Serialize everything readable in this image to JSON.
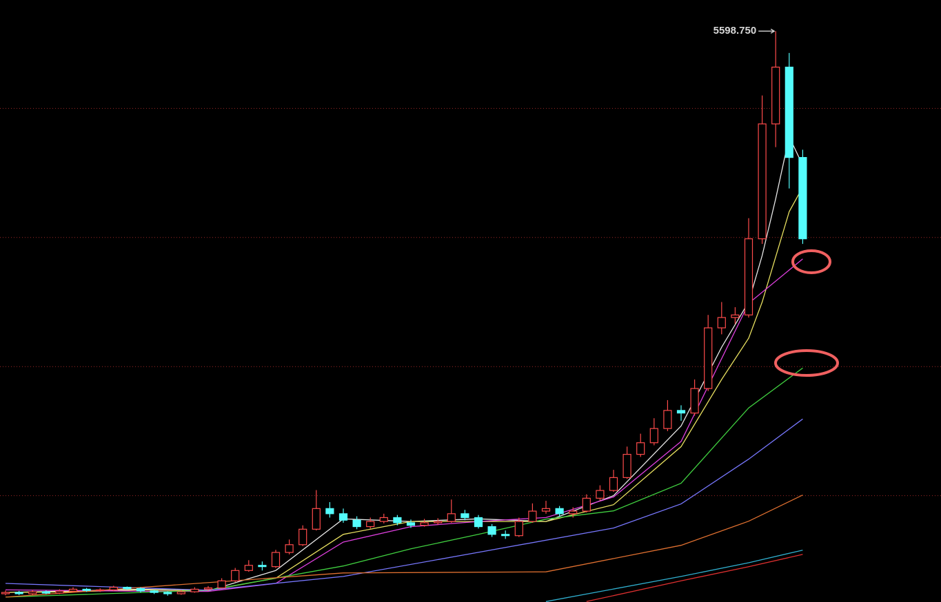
{
  "chart_data": {
    "type": "candlestick",
    "up_color": "#ff4b4b",
    "down_color": "#54fcfc",
    "grid_color": "#a02828",
    "ylim": [
      1176,
      5840
    ],
    "gridlines": [
      2000,
      3000,
      4000,
      5000
    ],
    "open": [
      1240,
      1250,
      1240,
      1255,
      1245,
      1260,
      1275,
      1265,
      1270,
      1290,
      1280,
      1262,
      1250,
      1240,
      1255,
      1275,
      1285,
      1340,
      1420,
      1460,
      1450,
      1560,
      1620,
      1740,
      1900,
      1860,
      1810,
      1760,
      1800,
      1830,
      1790,
      1770,
      1790,
      1800,
      1860,
      1830,
      1760,
      1700,
      1690,
      1800,
      1880,
      1900,
      1860,
      1880,
      1980,
      2040,
      2140,
      2320,
      2410,
      2520,
      2660,
      2640,
      2830,
      3300,
      3380,
      3400,
      3990,
      4880,
      5320,
      4620
    ],
    "high": [
      1265,
      1262,
      1270,
      1266,
      1275,
      1290,
      1285,
      1282,
      1302,
      1296,
      1290,
      1270,
      1258,
      1268,
      1290,
      1300,
      1360,
      1440,
      1500,
      1490,
      1580,
      1660,
      1770,
      2043,
      1950,
      1900,
      1840,
      1830,
      1860,
      1850,
      1815,
      1820,
      1825,
      1970,
      1890,
      1850,
      1780,
      1730,
      1830,
      1940,
      1960,
      1920,
      1910,
      2010,
      2080,
      2200,
      2380,
      2480,
      2600,
      2740,
      2700,
      2900,
      3400,
      3500,
      3460,
      4150,
      5100,
      5598.75,
      5430,
      4680
    ],
    "low": [
      1228,
      1230,
      1232,
      1236,
      1238,
      1252,
      1255,
      1254,
      1262,
      1270,
      1250,
      1238,
      1225,
      1232,
      1248,
      1265,
      1280,
      1330,
      1410,
      1420,
      1440,
      1545,
      1610,
      1730,
      1830,
      1790,
      1740,
      1745,
      1785,
      1770,
      1750,
      1760,
      1775,
      1790,
      1810,
      1745,
      1680,
      1665,
      1680,
      1790,
      1860,
      1840,
      1830,
      1870,
      1960,
      2030,
      2130,
      2300,
      2390,
      2500,
      2580,
      2620,
      2810,
      3250,
      3330,
      3380,
      3950,
      4700,
      4380,
      3950
    ],
    "close": [
      1250,
      1240,
      1255,
      1245,
      1260,
      1275,
      1265,
      1270,
      1290,
      1280,
      1262,
      1250,
      1240,
      1255,
      1275,
      1285,
      1340,
      1420,
      1460,
      1450,
      1560,
      1620,
      1740,
      1900,
      1860,
      1810,
      1760,
      1800,
      1830,
      1790,
      1770,
      1790,
      1800,
      1860,
      1830,
      1760,
      1700,
      1690,
      1800,
      1880,
      1900,
      1860,
      1880,
      1980,
      2040,
      2140,
      2320,
      2410,
      2520,
      2660,
      2640,
      2830,
      3300,
      3380,
      3400,
      3990,
      4880,
      5320,
      4620,
      3990
    ],
    "annotations": [
      {
        "label": "5598.750",
        "value": 5598.75
      }
    ],
    "lines": [
      {
        "color": "#e8e8e8",
        "x": [
          0,
          5,
          10,
          15,
          20,
          25,
          30,
          35,
          40,
          45,
          50,
          53,
          55,
          56,
          57,
          58,
          59
        ],
        "values": [
          1250,
          1262,
          1275,
          1262,
          1420,
          1820,
          1800,
          1820,
          1800,
          2000,
          2540,
          3150,
          3500,
          3860,
          4300,
          4780,
          4560
        ]
      },
      {
        "color": "#e8e060",
        "x": [
          0,
          5,
          10,
          15,
          20,
          25,
          30,
          35,
          40,
          45,
          50,
          53,
          55,
          56,
          57,
          58,
          59
        ],
        "values": [
          1250,
          1255,
          1270,
          1265,
          1360,
          1700,
          1800,
          1800,
          1800,
          1930,
          2380,
          2900,
          3220,
          3500,
          3850,
          4200,
          4390
        ]
      },
      {
        "color": "#e040e0",
        "x": [
          0,
          10,
          15,
          20,
          25,
          30,
          35,
          40,
          45,
          50,
          55,
          59
        ],
        "values": [
          1270,
          1260,
          1258,
          1320,
          1640,
          1760,
          1800,
          1830,
          1990,
          2420,
          3490,
          3834
        ]
      },
      {
        "color": "#40d040",
        "x": [
          0,
          15,
          25,
          30,
          35,
          40,
          45,
          50,
          55,
          59
        ],
        "values": [
          1214,
          1267,
          1455,
          1588,
          1700,
          1818,
          1882,
          2096,
          2680,
          2989
        ]
      },
      {
        "color": "#7878ff",
        "x": [
          0,
          15,
          25,
          35,
          45,
          50,
          55,
          59
        ],
        "values": [
          1320,
          1267,
          1374,
          1561,
          1749,
          1936,
          2283,
          2594
        ]
      },
      {
        "color": "#e07030",
        "x": [
          0,
          25,
          40,
          50,
          55,
          59
        ],
        "values": [
          1214,
          1401,
          1410,
          1615,
          1802,
          2005
        ]
      },
      {
        "color": "#30b0d0",
        "x": [
          40,
          50,
          55,
          59
        ],
        "values": [
          1180,
          1374,
          1480,
          1578
        ]
      },
      {
        "color": "#e03030",
        "x": [
          43,
          50,
          55,
          59
        ],
        "values": [
          1180,
          1340,
          1450,
          1545
        ]
      }
    ]
  }
}
